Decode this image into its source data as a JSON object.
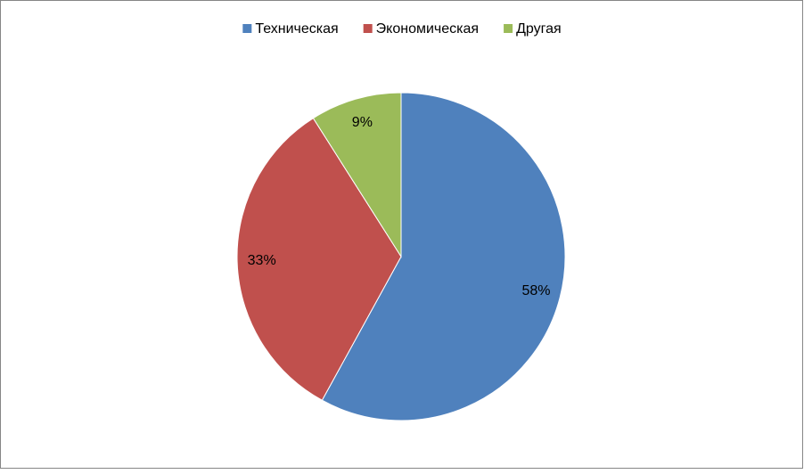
{
  "chart_data": {
    "type": "pie",
    "categories": [
      "Техническая",
      "Экономическая",
      "Другая"
    ],
    "values": [
      58,
      33,
      9
    ],
    "value_labels": [
      "58%",
      "33%",
      "9%"
    ],
    "colors": [
      "#4f81bd",
      "#c0504d",
      "#9bbb59"
    ],
    "legend": "top"
  }
}
